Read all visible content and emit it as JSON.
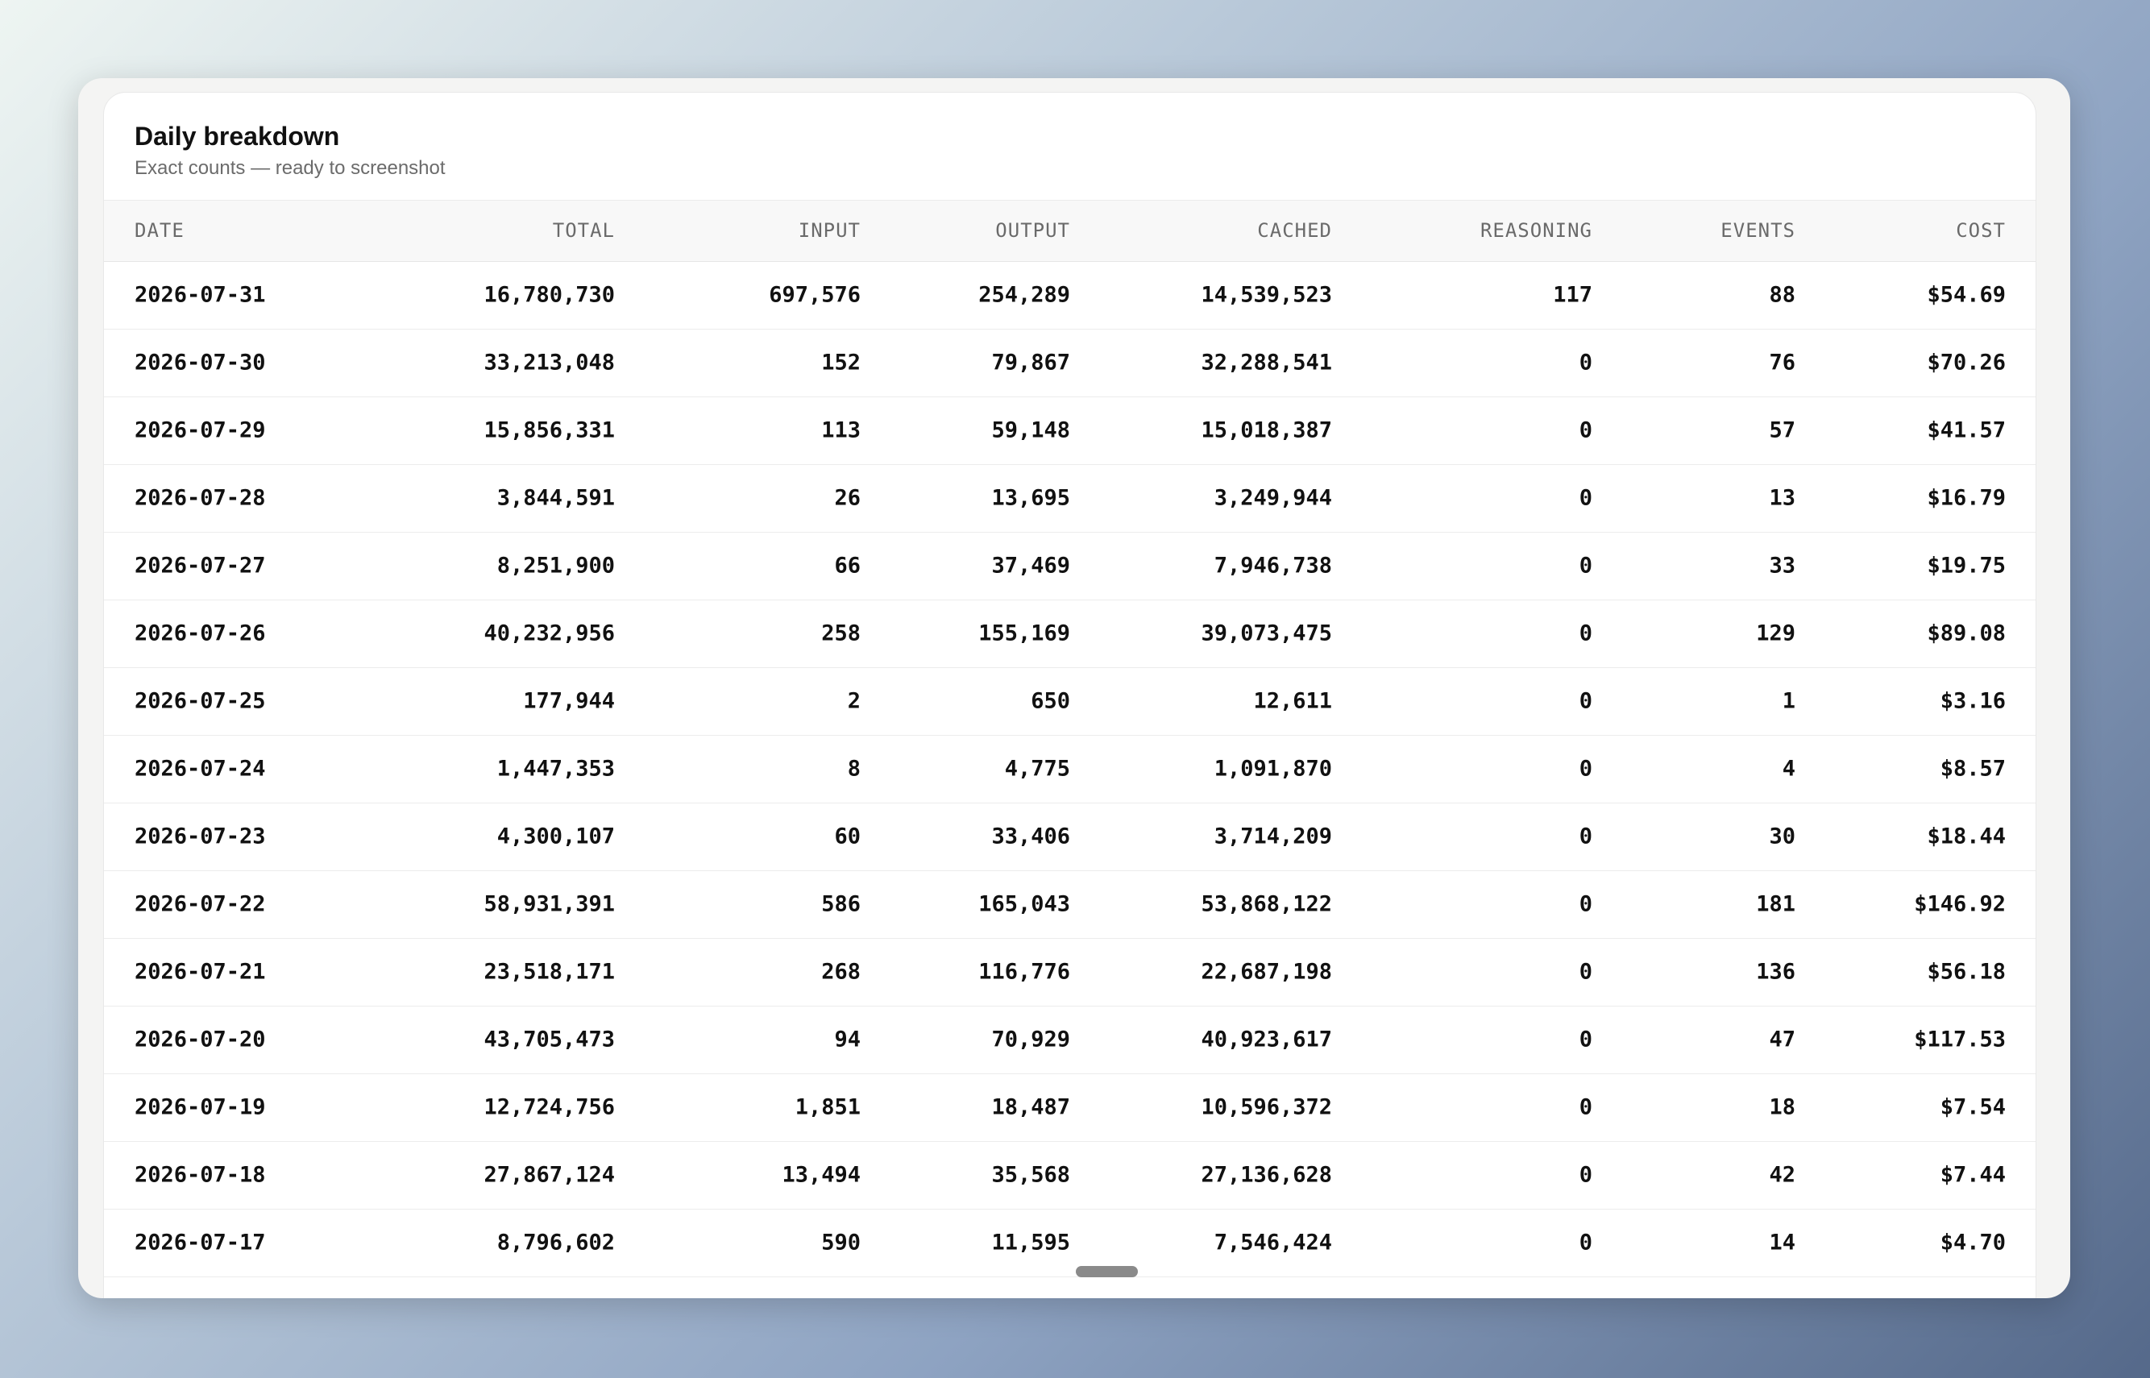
{
  "header": {
    "title": "Daily breakdown",
    "subtitle": "Exact counts — ready to screenshot"
  },
  "table": {
    "columns": [
      "DATE",
      "TOTAL",
      "INPUT",
      "OUTPUT",
      "CACHED",
      "REASONING",
      "EVENTS",
      "COST"
    ],
    "rows": [
      [
        "2026-07-31",
        "16,780,730",
        "697,576",
        "254,289",
        "14,539,523",
        "117",
        "88",
        "$54.69"
      ],
      [
        "2026-07-30",
        "33,213,048",
        "152",
        "79,867",
        "32,288,541",
        "0",
        "76",
        "$70.26"
      ],
      [
        "2026-07-29",
        "15,856,331",
        "113",
        "59,148",
        "15,018,387",
        "0",
        "57",
        "$41.57"
      ],
      [
        "2026-07-28",
        "3,844,591",
        "26",
        "13,695",
        "3,249,944",
        "0",
        "13",
        "$16.79"
      ],
      [
        "2026-07-27",
        "8,251,900",
        "66",
        "37,469",
        "7,946,738",
        "0",
        "33",
        "$19.75"
      ],
      [
        "2026-07-26",
        "40,232,956",
        "258",
        "155,169",
        "39,073,475",
        "0",
        "129",
        "$89.08"
      ],
      [
        "2026-07-25",
        "177,944",
        "2",
        "650",
        "12,611",
        "0",
        "1",
        "$3.16"
      ],
      [
        "2026-07-24",
        "1,447,353",
        "8",
        "4,775",
        "1,091,870",
        "0",
        "4",
        "$8.57"
      ],
      [
        "2026-07-23",
        "4,300,107",
        "60",
        "33,406",
        "3,714,209",
        "0",
        "30",
        "$18.44"
      ],
      [
        "2026-07-22",
        "58,931,391",
        "586",
        "165,043",
        "53,868,122",
        "0",
        "181",
        "$146.92"
      ],
      [
        "2026-07-21",
        "23,518,171",
        "268",
        "116,776",
        "22,687,198",
        "0",
        "136",
        "$56.18"
      ],
      [
        "2026-07-20",
        "43,705,473",
        "94",
        "70,929",
        "40,923,617",
        "0",
        "47",
        "$117.53"
      ],
      [
        "2026-07-19",
        "12,724,756",
        "1,851",
        "18,487",
        "10,596,372",
        "0",
        "18",
        "$7.54"
      ],
      [
        "2026-07-18",
        "27,867,124",
        "13,494",
        "35,568",
        "27,136,628",
        "0",
        "42",
        "$7.44"
      ],
      [
        "2026-07-17",
        "8,796,602",
        "590",
        "11,595",
        "7,546,424",
        "0",
        "14",
        "$4.70"
      ]
    ]
  }
}
